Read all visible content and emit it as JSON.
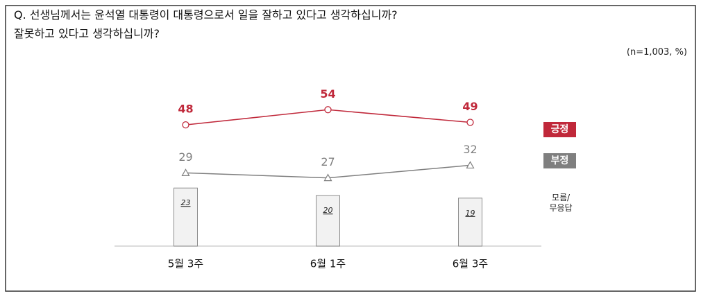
{
  "chart_data": {
    "type": "combo",
    "title": "Q. 선생님께서는 윤석열 대통령이 대통령으로서 일을 잘하고 있다고 생각하십니까?\n잘못하고 있다고 생각하십니까?",
    "note": "(n=1,003,  %)",
    "categories": [
      "5월 3주",
      "6월 1주",
      "6월 3주"
    ],
    "series": [
      {
        "name": "긍정",
        "type": "line",
        "marker": "circle",
        "color": "#c0283a",
        "values": [
          48,
          54,
          49
        ]
      },
      {
        "name": "부정",
        "type": "line",
        "marker": "triangle",
        "color": "#7f7f7f",
        "values": [
          29,
          27,
          32
        ]
      },
      {
        "name": "모름/\n무응답",
        "type": "bar",
        "color": "#f2f2f2",
        "values": [
          23,
          20,
          19
        ]
      }
    ],
    "ylim": [
      0,
      70
    ]
  }
}
